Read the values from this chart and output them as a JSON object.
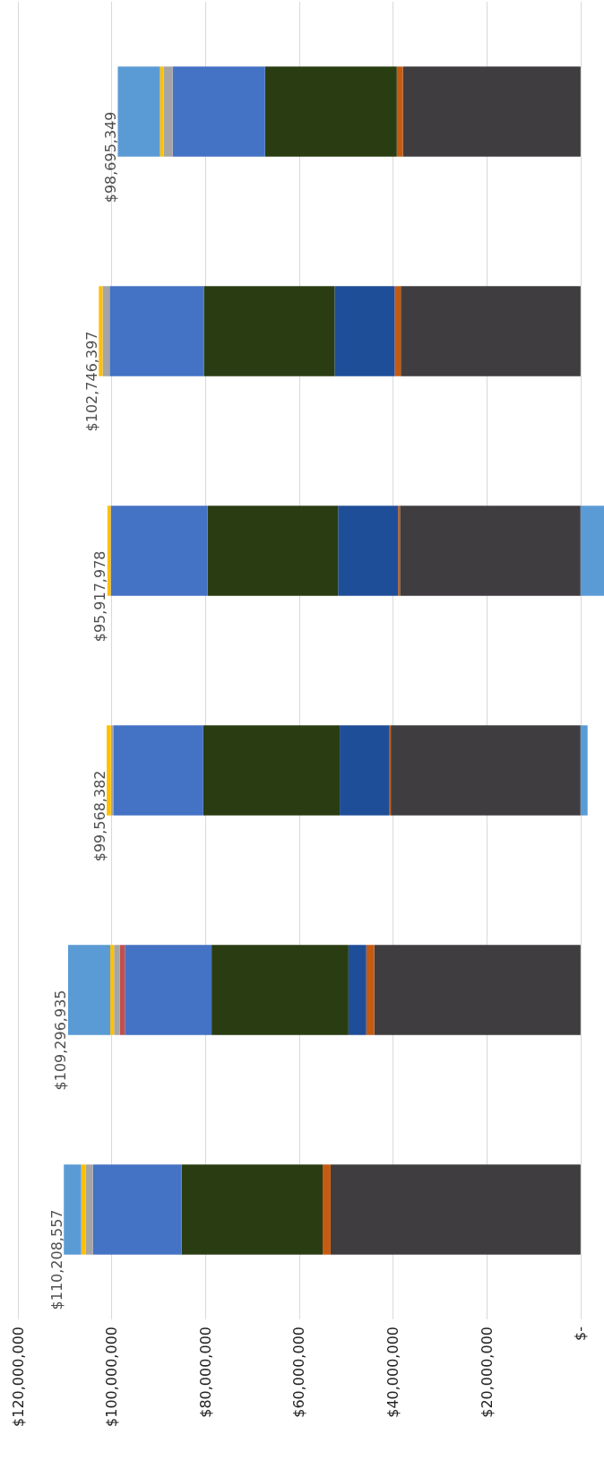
{
  "chart_data": {
    "type": "bar",
    "orientation": "horizontal",
    "stacked": true,
    "categories": [
      null,
      null,
      null,
      null,
      null,
      null
    ],
    "series": [
      {
        "color": "#3f3d3f",
        "values": [
          37895349,
          38346397,
          38517978,
          40468382,
          43996935,
          53308557
        ]
      },
      {
        "color": "#c55a11",
        "values": [
          1300000,
          1300000,
          400000,
          400000,
          1700000,
          1700000
        ]
      },
      {
        "color": "#1f4e99",
        "values": [
          null,
          12800000,
          12800000,
          10500000,
          3800000,
          null
        ]
      },
      {
        "color": "#2a3d12",
        "values": [
          28100000,
          27900000,
          27800000,
          29100000,
          29200000,
          30100000
        ]
      },
      {
        "color": "#4472c4",
        "values": [
          19700000,
          20100000,
          20700000,
          19200000,
          18500000,
          18900000
        ]
      },
      {
        "color": "#c0504d",
        "values": [
          null,
          null,
          null,
          null,
          1100000,
          null
        ]
      },
      {
        "color": "#a5a5a5",
        "values": [
          1900000,
          1500000,
          null,
          500000,
          1200000,
          1500000
        ]
      },
      {
        "color": "#ffc000",
        "values": [
          800000,
          800000,
          700000,
          900000,
          800000,
          1000000
        ]
      },
      {
        "color": "#5b9bd5",
        "values": [
          9000000,
          null,
          -5000000,
          -1500000,
          9000000,
          3700000
        ]
      }
    ],
    "totals": [
      "$98,695,349",
      "$102,746,397",
      "$95,917,978",
      "$99,568,382",
      "$109,296,935",
      "$110,208,557"
    ],
    "xlim": [
      120000000,
      -5000000
    ],
    "xticks": [
      {
        "value": 120000000,
        "label": "$120,000,000"
      },
      {
        "value": 100000000,
        "label": "$100,000,000"
      },
      {
        "value": 80000000,
        "label": "$80,000,000"
      },
      {
        "value": 60000000,
        "label": "$60,000,000"
      },
      {
        "value": 40000000,
        "label": "$40,000,000"
      },
      {
        "value": 20000000,
        "label": "$20,000,000"
      },
      {
        "value": 0,
        "label": "$-"
      }
    ],
    "grid": "x"
  }
}
